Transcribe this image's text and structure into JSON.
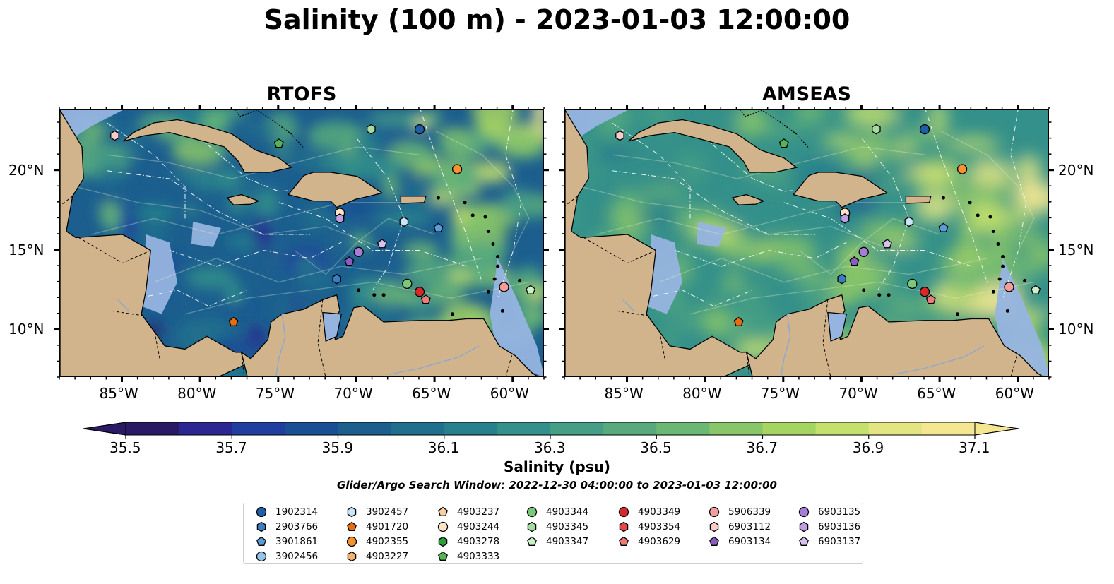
{
  "title": "Salinity (100 m) - 2023-01-03 12:00:00",
  "panels": [
    {
      "title": "RTOFS"
    },
    {
      "title": "AMSEAS"
    }
  ],
  "axes": {
    "lon_ticks": [
      "85°W",
      "80°W",
      "75°W",
      "70°W",
      "65°W",
      "60°W"
    ],
    "lat_ticks": [
      "20°N",
      "15°N",
      "10°N"
    ],
    "extent": {
      "lon_min": -89,
      "lon_max": -58,
      "lat_min": 7,
      "lat_max": 23.8
    }
  },
  "colorbar": {
    "label": "Salinity (psu)",
    "min": 35.5,
    "max": 37.1,
    "step": 0.1,
    "tick_labels": [
      "35.5",
      "35.7",
      "35.9",
      "36.1",
      "36.3",
      "36.5",
      "36.7",
      "36.9",
      "37.1"
    ],
    "extend": "both",
    "colormap": [
      "#2a1a66",
      "#2b2690",
      "#203e9e",
      "#1a4f94",
      "#1c5f8f",
      "#20708d",
      "#27808c",
      "#34908a",
      "#459e85",
      "#58aa7d",
      "#6cb774",
      "#89c569",
      "#a6d462",
      "#c5e06c",
      "#e3e582",
      "#f5e792"
    ]
  },
  "search_window": "Glider/Argo Search Window: 2022-12-30 04:00:00 to 2023-01-03 12:00:00",
  "colors": {
    "land": "#d2b48c",
    "shallow": "#96b4e0",
    "border": "#000000"
  },
  "legend": {
    "columns": [
      [
        {
          "id": "1902314",
          "shape": "circle",
          "color": "#1f5fa8"
        },
        {
          "id": "2903766",
          "shape": "hexagon",
          "color": "#3b7cc2"
        },
        {
          "id": "3901861",
          "shape": "pentagon",
          "color": "#5b9bd8"
        },
        {
          "id": "3902456",
          "shape": "circle",
          "color": "#93c4ea"
        }
      ],
      [
        {
          "id": "3902457",
          "shape": "hexagon",
          "color": "#c9e6f8"
        },
        {
          "id": "4901720",
          "shape": "pentagon",
          "color": "#e86d10"
        },
        {
          "id": "4902355",
          "shape": "circle",
          "color": "#f7922e"
        },
        {
          "id": "4903227",
          "shape": "hexagon",
          "color": "#f7b26b"
        }
      ],
      [
        {
          "id": "4903237",
          "shape": "pentagon",
          "color": "#f9cfa0"
        },
        {
          "id": "4903244",
          "shape": "circle",
          "color": "#fde3c8"
        },
        {
          "id": "4903278",
          "shape": "hexagon",
          "color": "#2b9e38"
        },
        {
          "id": "4903333",
          "shape": "pentagon",
          "color": "#54b554"
        }
      ],
      [
        {
          "id": "4903344",
          "shape": "circle",
          "color": "#7cc87a"
        },
        {
          "id": "4903345",
          "shape": "hexagon",
          "color": "#a4dba1"
        },
        {
          "id": "4903347",
          "shape": "pentagon",
          "color": "#cbf0c7"
        }
      ],
      [
        {
          "id": "4903349",
          "shape": "circle",
          "color": "#d42a2a"
        },
        {
          "id": "4903354",
          "shape": "hexagon",
          "color": "#e24a4a"
        },
        {
          "id": "4903629",
          "shape": "pentagon",
          "color": "#ee7a7a"
        }
      ],
      [
        {
          "id": "5906339",
          "shape": "circle",
          "color": "#f29d9a"
        },
        {
          "id": "6903112",
          "shape": "hexagon",
          "color": "#f9cccc"
        },
        {
          "id": "6903134",
          "shape": "pentagon",
          "color": "#8a5cc2"
        }
      ],
      [
        {
          "id": "6903135",
          "shape": "circle",
          "color": "#a47ed6"
        },
        {
          "id": "6903136",
          "shape": "hexagon",
          "color": "#bea0e2"
        },
        {
          "id": "6903137",
          "shape": "pentagon",
          "color": "#d6c1ef"
        }
      ]
    ]
  },
  "floats": [
    {
      "id": "1902314",
      "lon": -66.0,
      "lat": 22.6
    },
    {
      "id": "2903766",
      "lon": -71.3,
      "lat": 13.2
    },
    {
      "id": "3901861",
      "lon": -64.8,
      "lat": 16.4
    },
    {
      "id": "3902456",
      "lon": -71.1,
      "lat": 17.3
    },
    {
      "id": "3902457",
      "lon": -67.0,
      "lat": 16.8
    },
    {
      "id": "4901720",
      "lon": -77.9,
      "lat": 10.5
    },
    {
      "id": "4902355",
      "lon": -63.6,
      "lat": 20.1
    },
    {
      "id": "4903244",
      "lon": -71.1,
      "lat": 17.35
    },
    {
      "id": "4903333",
      "lon": -75.0,
      "lat": 21.7
    },
    {
      "id": "4903344",
      "lon": -66.8,
      "lat": 12.9
    },
    {
      "id": "4903345",
      "lon": -69.1,
      "lat": 22.6
    },
    {
      "id": "4903347",
      "lon": -58.9,
      "lat": 12.5
    },
    {
      "id": "4903349",
      "lon": -66.0,
      "lat": 12.4
    },
    {
      "id": "4903629",
      "lon": -65.6,
      "lat": 11.9
    },
    {
      "id": "5906339",
      "lon": -60.6,
      "lat": 12.7
    },
    {
      "id": "6903112",
      "lon": -85.5,
      "lat": 22.2
    },
    {
      "id": "6903134",
      "lon": -70.5,
      "lat": 14.3
    },
    {
      "id": "6903135",
      "lon": -69.9,
      "lat": 14.9
    },
    {
      "id": "6903136",
      "lon": -71.1,
      "lat": 17.0
    },
    {
      "id": "6903137",
      "lon": -68.4,
      "lat": 15.4
    }
  ]
}
